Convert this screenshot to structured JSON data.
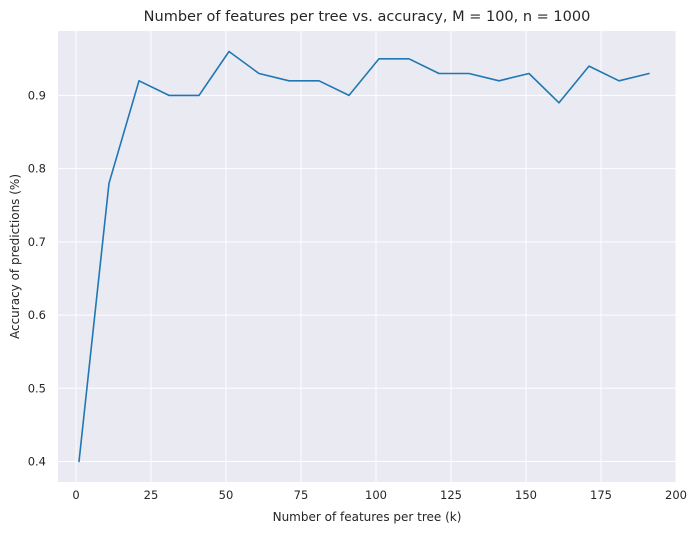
{
  "chart_data": {
    "type": "line",
    "title": "Number of features per tree vs. accuracy, M = 100, n = 1000",
    "xlabel": "Number of features per tree (k)",
    "ylabel": "Accuracy of predictions (%)",
    "xlim": [
      -6,
      200
    ],
    "ylim": [
      0.372,
      0.988
    ],
    "xticks": [
      0,
      25,
      50,
      75,
      100,
      125,
      150,
      175,
      200
    ],
    "yticks": [
      0.4,
      0.5,
      0.6,
      0.7,
      0.8,
      0.9
    ],
    "xtick_labels": [
      "0",
      "25",
      "50",
      "75",
      "100",
      "125",
      "150",
      "175",
      "200"
    ],
    "ytick_labels": [
      "0.4",
      "0.5",
      "0.6",
      "0.7",
      "0.8",
      "0.9"
    ],
    "grid": true,
    "legend": "none",
    "background_color": "#eaeaf2",
    "series": [
      {
        "color": "#1f77b4",
        "x": [
          1,
          11,
          21,
          31,
          41,
          51,
          61,
          71,
          81,
          91,
          101,
          111,
          121,
          131,
          141,
          151,
          161,
          171,
          181,
          191
        ],
        "y": [
          0.4,
          0.78,
          0.92,
          0.9,
          0.9,
          0.96,
          0.93,
          0.92,
          0.92,
          0.9,
          0.95,
          0.95,
          0.93,
          0.93,
          0.92,
          0.93,
          0.89,
          0.94,
          0.92,
          0.93
        ]
      }
    ]
  }
}
